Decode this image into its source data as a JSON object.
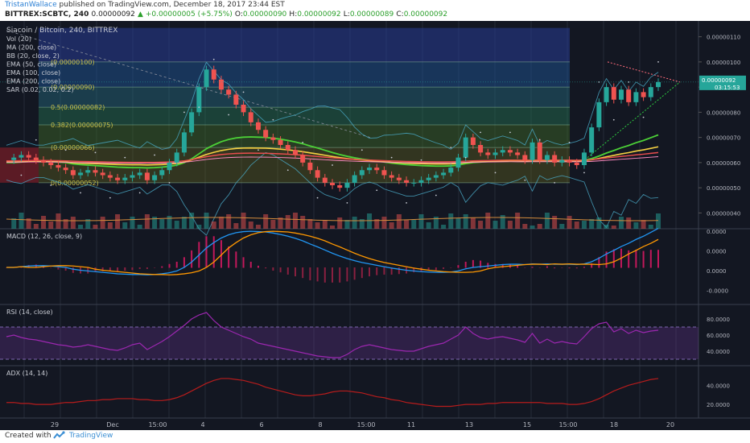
{
  "header": {
    "author": "TristanWallace",
    "published": "published on TradingView.com, December 18, 2017 23:44 EST",
    "symbol": "BITTREX:SCBTC, 240",
    "price": "0.00000092",
    "change": "▲ +0.00000005 (+5.75%)",
    "o_label": "O:",
    "o": "0.00000090",
    "h_label": "H:",
    "h": "0.00000092",
    "l_label": "L:",
    "l": "0.00000089",
    "c_label": "C:",
    "c": "0.00000092"
  },
  "footer": {
    "created": "Created with",
    "brand": "TradingView"
  },
  "chart_data": [
    {
      "type": "candlestick",
      "title": "Siacoin / Bitcoin, 240, BITTREX",
      "indicators": [
        "Vol (20)",
        "MA (200, close)",
        "BB (20, close, 2)",
        "EMA (50, close)",
        "EMA (100, close)",
        "EMA (200, close)",
        "SAR (0.02, 0.02, 0.2)"
      ],
      "ylim": [
        3.5e-07,
        1.15e-06
      ],
      "yticks": [
        "0.00000110",
        "0.00000100",
        "0.00000090",
        "0.00000080",
        "0.00000070",
        "0.00000060",
        "0.00000050",
        "0.00000040"
      ],
      "last_price": "0.00000092",
      "countdown": "03:15:53",
      "fib_levels": [
        {
          "label": "(0.00000100)",
          "value": 1e-06
        },
        {
          "label": "(0.00000090)",
          "value": 9e-07
        },
        {
          "label": "0.5(0.00000082)",
          "value": 8.2e-07
        },
        {
          "label": "0.382(0.00000075)",
          "value": 7.5e-07
        },
        {
          "label": "(0.00000066)",
          "value": 6.6e-07
        },
        {
          "label": "0(0.00000052)",
          "value": 5.2e-07
        }
      ],
      "close": [
        61,
        62,
        63,
        62,
        61,
        60,
        59,
        58,
        57,
        55,
        56,
        57,
        56,
        55,
        54,
        53,
        54,
        55,
        56,
        53,
        55,
        57,
        60,
        64,
        72,
        80,
        90,
        97,
        93,
        89,
        87,
        83,
        80,
        76,
        73,
        70,
        69,
        67,
        65,
        63,
        60,
        57,
        54,
        52,
        51,
        50,
        52,
        55,
        57,
        58,
        57,
        55,
        54,
        53,
        52,
        52,
        53,
        54,
        55,
        56,
        58,
        62,
        70,
        67,
        64,
        63,
        64,
        65,
        64,
        63,
        61,
        68,
        61,
        63,
        60,
        61,
        60,
        59,
        64,
        74,
        84,
        90,
        85,
        89,
        84,
        88,
        86,
        90,
        92
      ],
      "ema50": [
        60,
        60,
        60.2,
        60.4,
        60.5,
        60.5,
        60.4,
        60.2,
        60,
        59.5,
        59.2,
        59,
        58.8,
        58.6,
        58.4,
        58.2,
        58.1,
        58,
        58,
        57.9,
        58,
        58.2,
        58.5,
        59,
        60,
        61.5,
        63.5,
        65.5,
        67,
        68.3,
        69.2,
        69.8,
        70.1,
        70.2,
        70.1,
        70,
        69.7,
        69.3,
        68.8,
        68.2,
        67.5,
        66.6,
        65.8,
        64.9,
        64,
        63.2,
        62.5,
        61.9,
        61.4,
        61,
        60.6,
        60.2,
        59.8,
        59.5,
        59.2,
        59,
        58.8,
        58.7,
        58.6,
        58.6,
        58.7,
        59,
        59.6,
        60,
        60.2,
        60.4,
        60.6,
        60.8,
        60.9,
        60.9,
        60.8,
        61,
        60.9,
        61,
        60.9,
        60.9,
        60.9,
        60.8,
        61,
        61.6,
        62.6,
        63.8,
        64.8,
        65.9,
        66.8,
        67.9,
        68.8,
        69.9,
        71
      ]
    },
    {
      "type": "macd",
      "title": "MACD (12, 26, close, 9)",
      "yticks": [
        "0.0000",
        "0.0000",
        "0.0000",
        "-0.0000"
      ]
    },
    {
      "type": "rsi",
      "title": "RSI (14, close)",
      "yticks": [
        "80.0000",
        "60.0000",
        "40.0000"
      ],
      "bands": [
        70,
        30
      ],
      "values": [
        58,
        60,
        57,
        55,
        54,
        52,
        50,
        48,
        47,
        45,
        46,
        48,
        46,
        44,
        42,
        41,
        44,
        48,
        50,
        42,
        47,
        52,
        58,
        65,
        72,
        80,
        85,
        88,
        78,
        70,
        66,
        62,
        58,
        55,
        50,
        48,
        46,
        44,
        42,
        40,
        38,
        36,
        34,
        33,
        32,
        32,
        36,
        42,
        46,
        48,
        46,
        44,
        42,
        41,
        40,
        40,
        43,
        46,
        48,
        50,
        55,
        60,
        70,
        62,
        57,
        55,
        57,
        58,
        56,
        54,
        51,
        62,
        50,
        55,
        50,
        52,
        50,
        49,
        58,
        68,
        74,
        76,
        64,
        68,
        62,
        66,
        63,
        65,
        66
      ]
    },
    {
      "type": "adx",
      "title": "ADX (14, 14)",
      "yticks": [
        "40.0000",
        "20.0000"
      ],
      "values": [
        22,
        22,
        21,
        21,
        20,
        20,
        20,
        21,
        22,
        22,
        23,
        24,
        24,
        25,
        25,
        26,
        26,
        26,
        25,
        25,
        24,
        24,
        25,
        27,
        30,
        34,
        38,
        42,
        45,
        47,
        47,
        46,
        45,
        43,
        41,
        38,
        36,
        34,
        32,
        30,
        29,
        29,
        30,
        31,
        33,
        34,
        34,
        33,
        32,
        30,
        28,
        27,
        25,
        24,
        22,
        21,
        20,
        19,
        18,
        18,
        18,
        19,
        20,
        20,
        20,
        21,
        21,
        22,
        22,
        22,
        22,
        22,
        22,
        21,
        21,
        21,
        20,
        20,
        21,
        23,
        26,
        30,
        34,
        37,
        40,
        42,
        44,
        46,
        47
      ]
    }
  ],
  "x_ticks": [
    "29",
    "Dec",
    "15:00",
    "4",
    "6",
    "8",
    "15:00",
    "11",
    "13",
    "15",
    "15:00",
    "18",
    "20"
  ]
}
